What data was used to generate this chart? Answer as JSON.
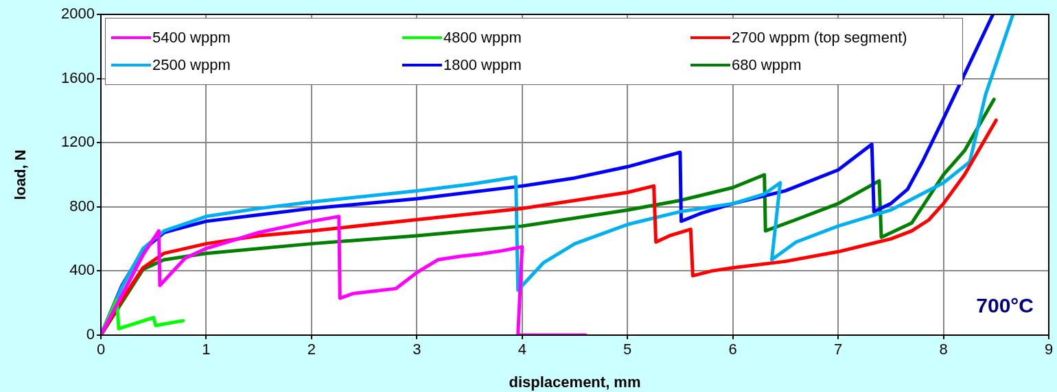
{
  "chart_data": {
    "type": "line",
    "xlabel": "displacement, mm",
    "ylabel": "load, N",
    "xlim": [
      0,
      9
    ],
    "xticks": [
      0,
      1,
      2,
      3,
      4,
      5,
      6,
      7,
      8,
      9
    ],
    "ylim": [
      0,
      2000
    ],
    "yticks": [
      0,
      400,
      800,
      1200,
      1600,
      2000
    ],
    "grid": true,
    "legend": "top left",
    "marker": "none",
    "line_style": "solid",
    "annotations": [
      "700°C"
    ],
    "series": [
      {
        "name": "5400 wppm",
        "color": "#ff00ff",
        "x": [
          0,
          0.2,
          0.4,
          0.55,
          0.56,
          0.8,
          1,
          1.5,
          2,
          2.26,
          2.27,
          2.4,
          2.8,
          3.0,
          3.2,
          3.4,
          3.6,
          3.8,
          4.0,
          3.96,
          4.6
        ],
        "values": [
          0,
          250,
          500,
          650,
          310,
          480,
          540,
          640,
          710,
          740,
          230,
          260,
          290,
          390,
          470,
          490,
          505,
          525,
          550,
          0,
          0
        ]
      },
      {
        "name": "4800 wppm",
        "color": "#00ff00",
        "x": [
          0,
          0.15,
          0.17,
          0.5,
          0.52,
          0.78
        ],
        "values": [
          0,
          220,
          40,
          110,
          60,
          90
        ]
      },
      {
        "name": "2700 wppm (top segment)",
        "color": "#ff0000",
        "x": [
          0,
          0.2,
          0.4,
          0.6,
          1,
          1.5,
          2,
          3,
          4,
          4.5,
          5,
          5.25,
          5.27,
          5.4,
          5.6,
          5.62,
          5.8,
          6,
          6.5,
          7,
          7.5,
          7.7,
          7.86,
          8,
          8.2,
          8.5
        ],
        "values": [
          0,
          220,
          420,
          510,
          570,
          620,
          650,
          720,
          790,
          840,
          890,
          930,
          580,
          620,
          660,
          370,
          400,
          420,
          460,
          520,
          600,
          650,
          718,
          820,
          1000,
          1340
        ]
      },
      {
        "name": "2500 wppm",
        "color": "#00b0f0",
        "x": [
          0,
          0.2,
          0.4,
          0.6,
          1,
          1.5,
          2,
          3,
          3.5,
          3.94,
          3.96,
          4.2,
          4.5,
          5,
          5.5,
          6,
          6.3,
          6.45,
          6.37,
          6.6,
          7,
          7.5,
          8,
          8.25,
          8.4,
          8.66
        ],
        "values": [
          0,
          300,
          540,
          650,
          740,
          790,
          830,
          900,
          940,
          985,
          280,
          450,
          570,
          690,
          770,
          820,
          880,
          950,
          470,
          580,
          680,
          780,
          950,
          1080,
          1500,
          2000
        ]
      },
      {
        "name": "1800 wppm",
        "color": "#0000ff",
        "x": [
          0,
          0.2,
          0.4,
          0.6,
          1,
          1.5,
          2,
          3,
          4,
          4.5,
          5,
          5.5,
          5.51,
          5.7,
          6,
          6.5,
          7,
          7.32,
          7.34,
          7.5,
          7.66,
          7.8,
          8,
          8.47
        ],
        "values": [
          0,
          310,
          530,
          640,
          710,
          750,
          790,
          850,
          930,
          980,
          1050,
          1140,
          710,
          760,
          820,
          900,
          1030,
          1190,
          770,
          820,
          910,
          1080,
          1350,
          2000
        ]
      },
      {
        "name": "680 wppm",
        "color": "#008000",
        "x": [
          0,
          0.4,
          0.6,
          1,
          2,
          3,
          4,
          5,
          5.5,
          6,
          6.3,
          6.31,
          6.6,
          7,
          7.39,
          7.41,
          7.7,
          8,
          8.2,
          8.48
        ],
        "values": [
          0,
          410,
          470,
          510,
          570,
          620,
          680,
          780,
          840,
          920,
          1000,
          650,
          720,
          820,
          962,
          610,
          700,
          1000,
          1150,
          1470
        ]
      }
    ]
  }
}
